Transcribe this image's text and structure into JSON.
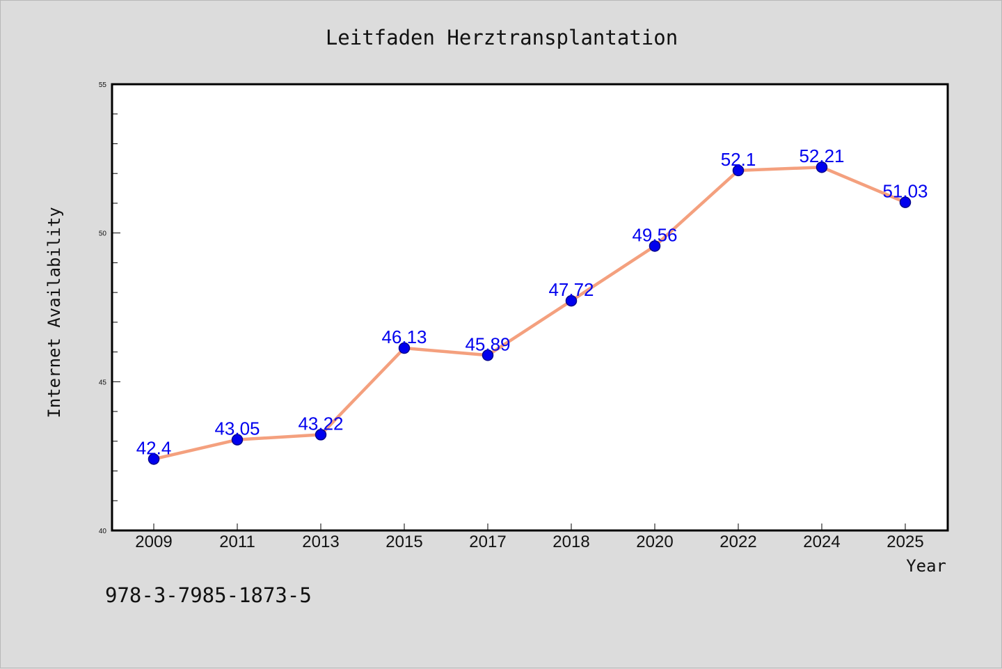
{
  "chart_data": {
    "type": "line",
    "title": "Leitfaden Herztransplantation",
    "xlabel": "Year",
    "ylabel": "Internet Availability",
    "categories": [
      "2009",
      "2011",
      "2013",
      "2015",
      "2017",
      "2018",
      "2020",
      "2022",
      "2024",
      "2025"
    ],
    "values": [
      42.4,
      43.05,
      43.22,
      46.13,
      45.89,
      47.72,
      49.56,
      52.1,
      52.21,
      51.03
    ],
    "data_labels": [
      "42.4",
      "43.05",
      "43.22",
      "46.13",
      "45.89",
      "47.72",
      "49.56",
      "52.1",
      "52.21",
      "51.03"
    ],
    "ylim": [
      40,
      55
    ],
    "yticks": [
      "40",
      "45",
      "50",
      "55"
    ],
    "ytick_values": [
      40,
      45,
      50,
      55
    ],
    "minor_tick_step": 1,
    "grid": false,
    "legend": "none",
    "colors": {
      "line": "#f4a07e",
      "marker": "#0000ee",
      "marker_edge": "#00008b",
      "data_label": "#0000ee",
      "plot_bg": "#ffffff",
      "figure_bg": "#dcdcdc",
      "axis": "#000000"
    }
  },
  "footer": {
    "isbn": "978-3-7985-1873-5"
  }
}
